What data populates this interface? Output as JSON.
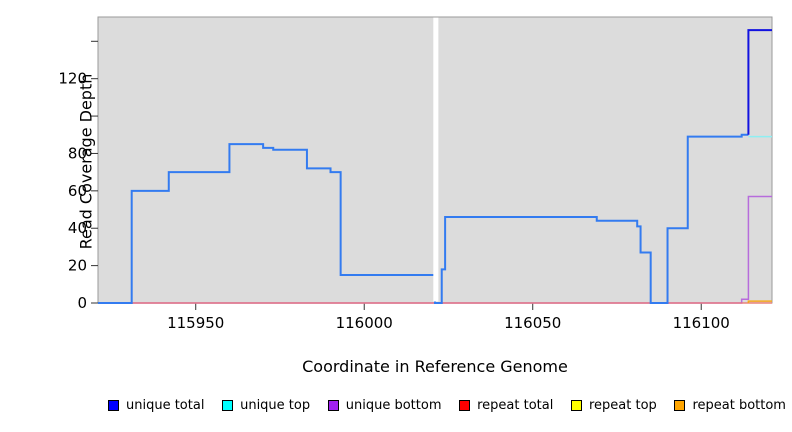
{
  "chart_data": {
    "type": "line",
    "subtype": "step",
    "title": "",
    "xlabel": "Coordinate in Reference Genome",
    "ylabel": "Read Coverage Depth",
    "xlim": [
      115921,
      116121
    ],
    "ylim": [
      0,
      153
    ],
    "grid": false,
    "legend_position": "bottom",
    "plot_background": "#DCDCDC",
    "plot_border_color": "#9A9A9A",
    "x_ticks": [
      {
        "value": 115950,
        "label": "115950"
      },
      {
        "value": 116000,
        "label": "116000"
      },
      {
        "value": 116050,
        "label": "116050"
      },
      {
        "value": 116100,
        "label": "116100"
      }
    ],
    "y_ticks": [
      {
        "value": 0,
        "label": "0"
      },
      {
        "value": 20,
        "label": "20"
      },
      {
        "value": 40,
        "label": "40"
      },
      {
        "value": 60,
        "label": "60"
      },
      {
        "value": 80,
        "label": "80"
      },
      {
        "value": 100,
        "label": ""
      },
      {
        "value": 120,
        "label": "120"
      },
      {
        "value": 140,
        "label": ""
      }
    ],
    "gap_band": {
      "x_start": 116020.5,
      "x_end": 116022,
      "color": "#FFFFFF",
      "note": "white no-data stripe through plot"
    },
    "series": [
      {
        "id": "repeat-top",
        "name": "repeat top",
        "color": "#F0E03A",
        "width": 1.2,
        "segments": [
          [
            115921,
            116121,
            0
          ]
        ],
        "note": "flat at 0, hidden under repeat total"
      },
      {
        "id": "unique-bottom",
        "name": "unique bottom",
        "color": "#B76CDC",
        "width": 1.5,
        "segments": [
          [
            115921,
            116112,
            0
          ],
          [
            116112,
            116114,
            2
          ],
          [
            116114,
            116121,
            57
          ]
        ],
        "note": "near 0 until right end, then rises to 57"
      },
      {
        "id": "repeat-total",
        "name": "repeat total",
        "color": "#E8707E",
        "width": 1.3,
        "segments": [
          [
            115921,
            116121,
            0
          ]
        ],
        "note": "flat at 0 across whole region"
      },
      {
        "id": "unique-total-main",
        "name": "unique total",
        "color": "#337BF0",
        "width": 2,
        "segments": [
          [
            115921,
            115931,
            0
          ],
          [
            115931,
            115942,
            60
          ],
          [
            115942,
            115960,
            70
          ],
          [
            115960,
            115970,
            85
          ],
          [
            115970,
            115973,
            83
          ],
          [
            115973,
            115983,
            82
          ],
          [
            115983,
            115990,
            72
          ],
          [
            115990,
            115993,
            70
          ],
          [
            115993,
            116021,
            15
          ],
          [
            116021,
            116023,
            0
          ],
          [
            116023,
            116024,
            18
          ],
          [
            116024,
            116069,
            46
          ],
          [
            116069,
            116081,
            44
          ],
          [
            116081,
            116082,
            41
          ],
          [
            116082,
            116085,
            27
          ],
          [
            116085,
            116090,
            0
          ],
          [
            116090,
            116096,
            40
          ],
          [
            116096,
            116112,
            89
          ],
          [
            116112,
            116114,
            90
          ]
        ],
        "note": "coincides with unique top until 116114"
      },
      {
        "id": "unique-total-end",
        "name": "unique total",
        "color": "#1212E0",
        "width": 2,
        "connect_from": [
          116114,
          90
        ],
        "segments": [
          [
            116114,
            116121,
            146
          ]
        ],
        "note": "unique total alone after divergence"
      },
      {
        "id": "unique-top",
        "name": "unique top",
        "color": "#8EEFF2",
        "width": 1.6,
        "segments": [
          [
            116114,
            116121,
            89
          ]
        ],
        "note": "visible only after 116114 at 89, elsewhere under unique total"
      },
      {
        "id": "repeat-bottom",
        "name": "repeat bottom",
        "color": "#F5A81C",
        "width": 1.6,
        "connect_from": [
          116114,
          0
        ],
        "segments": [
          [
            116114,
            116121,
            1
          ]
        ],
        "note": "0 until 116114, then about 1"
      }
    ]
  },
  "axes": {
    "x_title": "Coordinate in Reference Genome",
    "y_title": "Read Coverage Depth"
  },
  "legend": {
    "items": [
      {
        "label": "unique total",
        "color": "#0000FF"
      },
      {
        "label": "unique top",
        "color": "#00FFFF"
      },
      {
        "label": "unique bottom",
        "color": "#A020F0"
      },
      {
        "label": "repeat total",
        "color": "#FF0000"
      },
      {
        "label": "repeat top",
        "color": "#FFFF00"
      },
      {
        "label": "repeat bottom",
        "color": "#FFA500"
      }
    ]
  }
}
